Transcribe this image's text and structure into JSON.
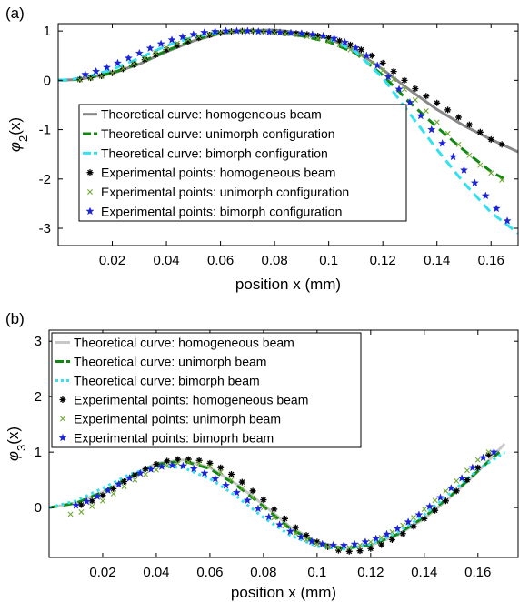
{
  "chart_data": [
    {
      "panel_label": "(a)",
      "type": "line",
      "xlabel": "position x (mm)",
      "ylabel_main": "φ",
      "ylabel_sub": "2",
      "ylabel_tail": "(x)",
      "xlim": [
        0,
        0.17
      ],
      "ylim": [
        -3.35,
        1.15
      ],
      "xticks": [
        0.02,
        0.04,
        0.06,
        0.08,
        0.1,
        0.12,
        0.14,
        0.16
      ],
      "xtick_labels": [
        "0.02",
        "0.04",
        "0.06",
        "0.08",
        "0.1",
        "0.12",
        "0.14",
        "0.16"
      ],
      "yticks": [
        1,
        0,
        -1,
        -2,
        -3
      ],
      "ytick_labels": [
        "1",
        "0",
        "-1",
        "-2",
        "-3"
      ],
      "grid": false,
      "legend_position": "bottom-center",
      "series": [
        {
          "name": "Theoretical curve: homogeneous beam",
          "kind": "line",
          "dash": "solid",
          "color": "#888888",
          "width": 3,
          "x": [
            0,
            0.005,
            0.01,
            0.02,
            0.03,
            0.04,
            0.05,
            0.06,
            0.07,
            0.08,
            0.09,
            0.1,
            0.11,
            0.12,
            0.13,
            0.14,
            0.15,
            0.16,
            0.17
          ],
          "y": [
            0,
            0.01,
            0.04,
            0.14,
            0.33,
            0.58,
            0.8,
            0.95,
            1.01,
            1.02,
            0.96,
            0.85,
            0.6,
            0.22,
            -0.2,
            -0.59,
            -0.92,
            -1.2,
            -1.45
          ]
        },
        {
          "name": "Theoretical curve: unimorph configuration",
          "kind": "line",
          "dash": "dashed",
          "color": "#118811",
          "width": 3,
          "x": [
            0,
            0.005,
            0.01,
            0.02,
            0.03,
            0.04,
            0.05,
            0.06,
            0.07,
            0.08,
            0.09,
            0.1,
            0.11,
            0.12,
            0.13,
            0.14,
            0.15,
            0.16,
            0.165
          ],
          "y": [
            0,
            0.01,
            0.04,
            0.15,
            0.35,
            0.6,
            0.82,
            0.96,
            1.01,
            0.98,
            0.9,
            0.78,
            0.55,
            0.1,
            -0.45,
            -0.95,
            -1.42,
            -1.85,
            -2.0
          ]
        },
        {
          "name": "Theoretical curve: bimorph configuration",
          "kind": "line",
          "dash": "dashed",
          "color": "#33e0f0",
          "width": 3,
          "x": [
            0,
            0.005,
            0.01,
            0.02,
            0.03,
            0.04,
            0.05,
            0.06,
            0.07,
            0.08,
            0.09,
            0.1,
            0.11,
            0.12,
            0.13,
            0.14,
            0.15,
            0.16,
            0.17
          ],
          "y": [
            0,
            0.02,
            0.06,
            0.22,
            0.45,
            0.7,
            0.88,
            0.98,
            1.0,
            0.99,
            0.95,
            0.85,
            0.58,
            0.05,
            -0.68,
            -1.4,
            -2.08,
            -2.68,
            -3.1
          ]
        },
        {
          "name": "Experimental points: homogeneous beam",
          "kind": "marker",
          "marker": "asterisk",
          "color": "#000000",
          "size": 3.5,
          "x": [
            0.008,
            0.012,
            0.016,
            0.02,
            0.024,
            0.028,
            0.032,
            0.036,
            0.04,
            0.044,
            0.048,
            0.052,
            0.056,
            0.06,
            0.064,
            0.068,
            0.072,
            0.076,
            0.08,
            0.084,
            0.088,
            0.092,
            0.096,
            0.1,
            0.104,
            0.108,
            0.112,
            0.116,
            0.12,
            0.124,
            0.128,
            0.132,
            0.136,
            0.14,
            0.144,
            0.148,
            0.152,
            0.156,
            0.16,
            0.164
          ],
          "y": [
            0.02,
            0.05,
            0.09,
            0.15,
            0.23,
            0.32,
            0.42,
            0.52,
            0.62,
            0.71,
            0.79,
            0.86,
            0.92,
            0.96,
            0.99,
            1.0,
            1.0,
            0.99,
            0.98,
            0.96,
            0.95,
            0.93,
            0.9,
            0.86,
            0.8,
            0.72,
            0.62,
            0.5,
            0.35,
            0.18,
            0.0,
            -0.17,
            -0.32,
            -0.46,
            -0.6,
            -0.75,
            -0.9,
            -1.05,
            -1.2,
            -1.3
          ]
        },
        {
          "name": "Experimental points: unimorph configuration",
          "kind": "marker",
          "marker": "cross",
          "color": "#6fa832",
          "size": 2.6,
          "x": [
            0.008,
            0.012,
            0.016,
            0.02,
            0.024,
            0.028,
            0.032,
            0.036,
            0.04,
            0.044,
            0.048,
            0.052,
            0.056,
            0.06,
            0.064,
            0.068,
            0.072,
            0.076,
            0.08,
            0.084,
            0.088,
            0.092,
            0.096,
            0.1,
            0.104,
            0.108,
            0.112,
            0.116,
            0.12,
            0.124,
            0.128,
            0.132,
            0.136,
            0.14,
            0.144,
            0.148,
            0.152,
            0.156,
            0.16,
            0.164
          ],
          "y": [
            0.01,
            0.04,
            0.08,
            0.15,
            0.24,
            0.34,
            0.45,
            0.56,
            0.66,
            0.75,
            0.83,
            0.89,
            0.94,
            0.97,
            0.99,
            1.0,
            1.0,
            0.99,
            0.97,
            0.95,
            0.92,
            0.89,
            0.85,
            0.8,
            0.72,
            0.62,
            0.5,
            0.36,
            0.2,
            0.02,
            -0.18,
            -0.4,
            -0.62,
            -0.85,
            -1.08,
            -1.3,
            -1.52,
            -1.72,
            -1.88,
            -2.02
          ]
        },
        {
          "name": "Experimental points: bimorph configuration",
          "kind": "marker",
          "marker": "star",
          "color": "#1a24d6",
          "size": 4.2,
          "x": [
            0.01,
            0.014,
            0.018,
            0.022,
            0.026,
            0.03,
            0.034,
            0.038,
            0.042,
            0.046,
            0.05,
            0.054,
            0.058,
            0.062,
            0.066,
            0.07,
            0.074,
            0.078,
            0.082,
            0.086,
            0.09,
            0.094,
            0.098,
            0.102,
            0.106,
            0.11,
            0.114,
            0.118,
            0.122,
            0.126,
            0.13,
            0.134,
            0.138,
            0.142,
            0.146,
            0.15,
            0.154,
            0.158,
            0.162,
            0.166
          ],
          "y": [
            0.12,
            0.18,
            0.26,
            0.35,
            0.45,
            0.55,
            0.65,
            0.74,
            0.82,
            0.88,
            0.93,
            0.97,
            0.99,
            1.0,
            1.0,
            1.0,
            0.99,
            0.98,
            0.97,
            0.96,
            0.95,
            0.93,
            0.9,
            0.85,
            0.77,
            0.66,
            0.5,
            0.3,
            0.07,
            -0.18,
            -0.45,
            -0.72,
            -1.0,
            -1.28,
            -1.55,
            -1.82,
            -2.08,
            -2.34,
            -2.6,
            -2.85
          ]
        }
      ]
    },
    {
      "panel_label": "(b)",
      "type": "line",
      "xlabel": "position x (mm)",
      "ylabel_main": "φ",
      "ylabel_sub": "3",
      "ylabel_tail": "(x)",
      "xlim": [
        0,
        0.175
      ],
      "ylim": [
        -0.9,
        3.2
      ],
      "xticks": [
        0.02,
        0.04,
        0.06,
        0.08,
        0.1,
        0.12,
        0.14,
        0.16
      ],
      "xtick_labels": [
        "0.02",
        "0.04",
        "0.06",
        "0.08",
        "0.1",
        "0.12",
        "0.14",
        "0.16"
      ],
      "yticks": [
        3,
        2,
        1,
        0
      ],
      "ytick_labels": [
        "3",
        "2",
        "1",
        "0"
      ],
      "grid": false,
      "legend_position": "top-left",
      "series": [
        {
          "name": "Theoretical curve: homogeneous beam",
          "kind": "line",
          "dash": "solid",
          "color": "#c8c8c8",
          "width": 3,
          "x": [
            0,
            0.01,
            0.02,
            0.03,
            0.04,
            0.05,
            0.06,
            0.07,
            0.08,
            0.09,
            0.1,
            0.11,
            0.12,
            0.13,
            0.14,
            0.15,
            0.16,
            0.17
          ],
          "y": [
            0,
            0.08,
            0.28,
            0.55,
            0.8,
            0.86,
            0.72,
            0.42,
            0.05,
            -0.35,
            -0.62,
            -0.73,
            -0.68,
            -0.5,
            -0.2,
            0.2,
            0.65,
            1.15
          ]
        },
        {
          "name": "Theoretical curve: unimorph beam",
          "kind": "line",
          "dash": "dashed",
          "color": "#118811",
          "width": 3,
          "x": [
            0,
            0.01,
            0.02,
            0.03,
            0.04,
            0.05,
            0.06,
            0.07,
            0.08,
            0.09,
            0.1,
            0.11,
            0.12,
            0.13,
            0.14,
            0.15,
            0.16,
            0.168
          ],
          "y": [
            0,
            0.08,
            0.28,
            0.55,
            0.78,
            0.84,
            0.7,
            0.4,
            0.02,
            -0.38,
            -0.64,
            -0.74,
            -0.68,
            -0.48,
            -0.17,
            0.22,
            0.66,
            1.0
          ]
        },
        {
          "name": "Theoretical curve: bimorph beam",
          "kind": "line",
          "dash": "dotted",
          "color": "#33e0f0",
          "width": 3,
          "x": [
            0,
            0.01,
            0.02,
            0.03,
            0.04,
            0.05,
            0.06,
            0.07,
            0.08,
            0.09,
            0.1,
            0.11,
            0.12,
            0.13,
            0.14,
            0.15,
            0.16,
            0.17
          ],
          "y": [
            0,
            0.12,
            0.35,
            0.6,
            0.75,
            0.72,
            0.52,
            0.2,
            -0.18,
            -0.5,
            -0.7,
            -0.75,
            -0.66,
            -0.45,
            -0.13,
            0.27,
            0.68,
            1.0
          ]
        },
        {
          "name": "Experimental points: homogeneous beam",
          "kind": "marker",
          "marker": "asterisk",
          "color": "#000000",
          "size": 3.5,
          "x": [
            0.012,
            0.016,
            0.02,
            0.024,
            0.028,
            0.032,
            0.036,
            0.04,
            0.044,
            0.048,
            0.052,
            0.056,
            0.06,
            0.064,
            0.068,
            0.072,
            0.076,
            0.08,
            0.084,
            0.088,
            0.092,
            0.096,
            0.1,
            0.104,
            0.108,
            0.112,
            0.116,
            0.12,
            0.124,
            0.128,
            0.132,
            0.136,
            0.14,
            0.144,
            0.148,
            0.152,
            0.156,
            0.16,
            0.164
          ],
          "y": [
            0.05,
            0.12,
            0.22,
            0.34,
            0.47,
            0.59,
            0.7,
            0.78,
            0.84,
            0.87,
            0.87,
            0.85,
            0.8,
            0.72,
            0.6,
            0.46,
            0.3,
            0.14,
            -0.03,
            -0.2,
            -0.36,
            -0.5,
            -0.62,
            -0.71,
            -0.77,
            -0.79,
            -0.78,
            -0.74,
            -0.67,
            -0.58,
            -0.47,
            -0.34,
            -0.2,
            -0.05,
            0.12,
            0.3,
            0.5,
            0.72,
            0.95
          ]
        },
        {
          "name": "Experimental points: unimorph beam",
          "kind": "marker",
          "marker": "cross",
          "color": "#6fa832",
          "size": 2.6,
          "x": [
            0.008,
            0.012,
            0.016,
            0.02,
            0.024,
            0.028,
            0.032,
            0.036,
            0.04,
            0.044,
            0.048,
            0.052,
            0.056,
            0.06,
            0.064,
            0.068,
            0.072,
            0.076,
            0.08,
            0.084,
            0.088,
            0.092,
            0.096,
            0.1,
            0.104,
            0.108,
            0.112,
            0.116,
            0.12,
            0.124,
            0.128,
            0.132,
            0.136,
            0.14,
            0.144,
            0.148,
            0.152,
            0.156,
            0.16,
            0.164
          ],
          "y": [
            -0.12,
            -0.08,
            0.02,
            0.12,
            0.25,
            0.38,
            0.5,
            0.6,
            0.68,
            0.75,
            0.8,
            0.82,
            0.8,
            0.74,
            0.64,
            0.5,
            0.35,
            0.18,
            0.0,
            -0.18,
            -0.33,
            -0.47,
            -0.58,
            -0.66,
            -0.71,
            -0.73,
            -0.72,
            -0.68,
            -0.62,
            -0.54,
            -0.44,
            -0.32,
            -0.18,
            -0.03,
            0.13,
            0.3,
            0.48,
            0.67,
            0.86,
            1.0
          ]
        },
        {
          "name": "Experimental points: bimoprh beam",
          "kind": "marker",
          "marker": "star",
          "color": "#1a24d6",
          "size": 4.2,
          "x": [
            0.01,
            0.014,
            0.018,
            0.022,
            0.026,
            0.03,
            0.034,
            0.038,
            0.042,
            0.046,
            0.05,
            0.054,
            0.058,
            0.062,
            0.066,
            0.07,
            0.074,
            0.078,
            0.082,
            0.086,
            0.09,
            0.094,
            0.098,
            0.102,
            0.106,
            0.11,
            0.114,
            0.118,
            0.122,
            0.126,
            0.13,
            0.134,
            0.138,
            0.142,
            0.146,
            0.15,
            0.154,
            0.158,
            0.162,
            0.166
          ],
          "y": [
            0.04,
            0.11,
            0.2,
            0.31,
            0.42,
            0.53,
            0.62,
            0.69,
            0.74,
            0.76,
            0.75,
            0.7,
            0.62,
            0.52,
            0.4,
            0.27,
            0.13,
            -0.02,
            -0.17,
            -0.31,
            -0.43,
            -0.53,
            -0.61,
            -0.66,
            -0.68,
            -0.68,
            -0.66,
            -0.62,
            -0.56,
            -0.48,
            -0.38,
            -0.26,
            -0.13,
            0.02,
            0.18,
            0.35,
            0.53,
            0.72,
            0.9,
            1.0
          ]
        }
      ]
    }
  ]
}
